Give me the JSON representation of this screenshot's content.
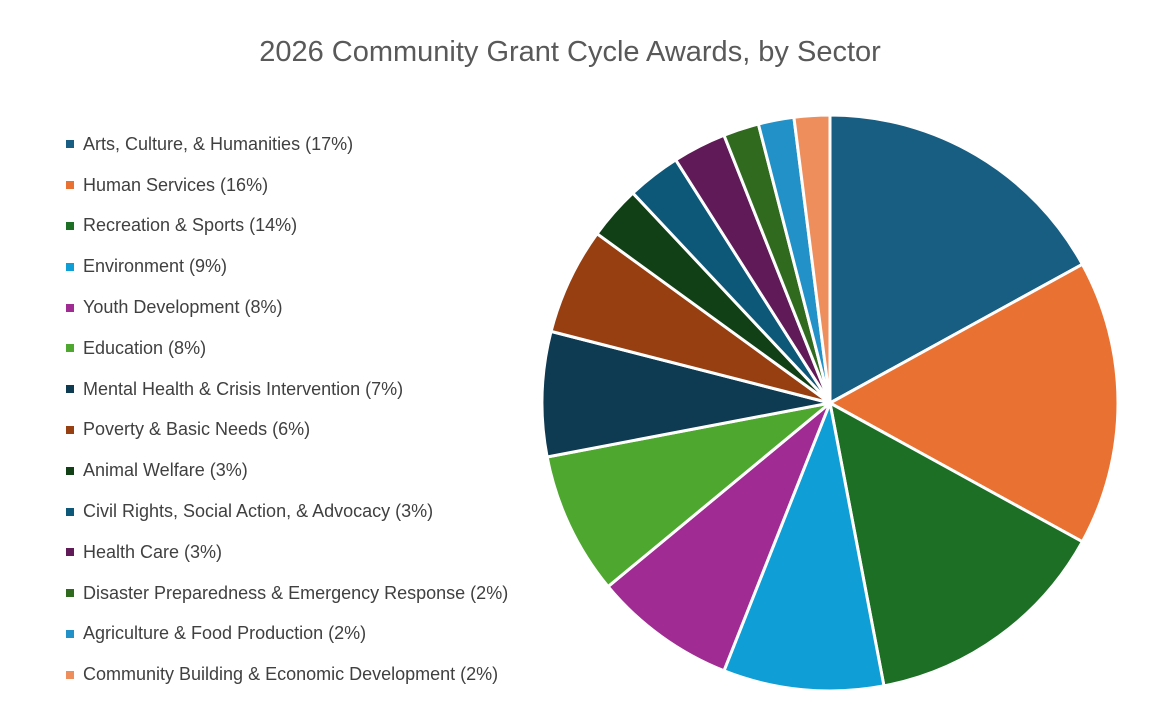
{
  "chart_data": {
    "type": "pie",
    "title": "2026 Community Grant Cycle Awards, by Sector",
    "legend_position": "left",
    "slices": [
      {
        "label": "Arts, Culture, & Humanities (17%)",
        "value": 17,
        "color": "#175e82"
      },
      {
        "label": "Human Services (16%)",
        "value": 16,
        "color": "#e97132"
      },
      {
        "label": "Recreation & Sports (14%)",
        "value": 14,
        "color": "#1c6f24"
      },
      {
        "label": "Environment (9%)",
        "value": 9,
        "color": "#0f9ed5"
      },
      {
        "label": "Youth Development (8%)",
        "value": 8,
        "color": "#a02b93"
      },
      {
        "label": "Education (8%)",
        "value": 8,
        "color": "#4ea72e"
      },
      {
        "label": "Mental Health & Crisis Intervention (7%)",
        "value": 7,
        "color": "#0e3a52"
      },
      {
        "label": "Poverty & Basic Needs (6%)",
        "value": 6,
        "color": "#983f12"
      },
      {
        "label": "Animal Welfare (3%)",
        "value": 3,
        "color": "#113f16"
      },
      {
        "label": "Civil Rights, Social Action, & Advocacy (3%)",
        "value": 3,
        "color": "#0d5779"
      },
      {
        "label": "Health Care (3%)",
        "value": 3,
        "color": "#5f1a57"
      },
      {
        "label": "Disaster Preparedness & Emergency Response (2%)",
        "value": 2,
        "color": "#2f6a1f"
      },
      {
        "label": "Agriculture & Food Production (2%)",
        "value": 2,
        "color": "#2191c7"
      },
      {
        "label": "Community Building & Economic Development (2%)",
        "value": 2,
        "color": "#ee8e5c"
      }
    ]
  }
}
